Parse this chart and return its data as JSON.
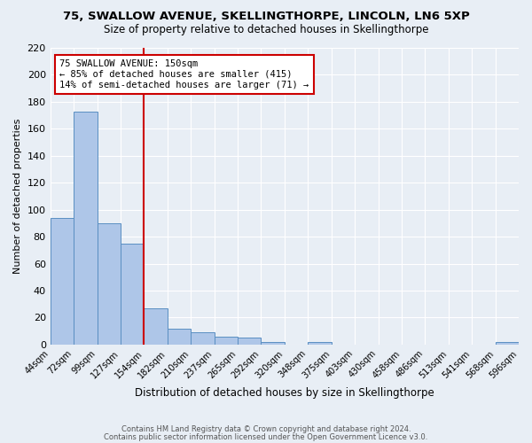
{
  "title1": "75, SWALLOW AVENUE, SKELLINGTHORPE, LINCOLN, LN6 5XP",
  "title2": "Size of property relative to detached houses in Skellingthorpe",
  "xlabel": "Distribution of detached houses by size in Skellingthorpe",
  "ylabel": "Number of detached properties",
  "bar_values": [
    94,
    173,
    90,
    75,
    27,
    12,
    9,
    6,
    5,
    2,
    0,
    2,
    0,
    0,
    0,
    0,
    0,
    0,
    0,
    2
  ],
  "bin_labels": [
    "44sqm",
    "72sqm",
    "99sqm",
    "127sqm",
    "154sqm",
    "182sqm",
    "210sqm",
    "237sqm",
    "265sqm",
    "292sqm",
    "320sqm",
    "348sqm",
    "375sqm",
    "403sqm",
    "430sqm",
    "458sqm",
    "486sqm",
    "513sqm",
    "541sqm",
    "568sqm",
    "596sqm"
  ],
  "bar_color": "#aec6e8",
  "bar_edge_color": "#5a8fc2",
  "marker_color": "#cc0000",
  "marker_bin_index": 3,
  "ylim": [
    0,
    220
  ],
  "yticks": [
    0,
    20,
    40,
    60,
    80,
    100,
    120,
    140,
    160,
    180,
    200,
    220
  ],
  "annotation_title": "75 SWALLOW AVENUE: 150sqm",
  "annotation_line1": "← 85% of detached houses are smaller (415)",
  "annotation_line2": "14% of semi-detached houses are larger (71) →",
  "annotation_box_color": "#ffffff",
  "annotation_edge_color": "#cc0000",
  "footer1": "Contains HM Land Registry data © Crown copyright and database right 2024.",
  "footer2": "Contains public sector information licensed under the Open Government Licence v3.0.",
  "background_color": "#e8eef5",
  "plot_bg_color": "#e8eef5"
}
